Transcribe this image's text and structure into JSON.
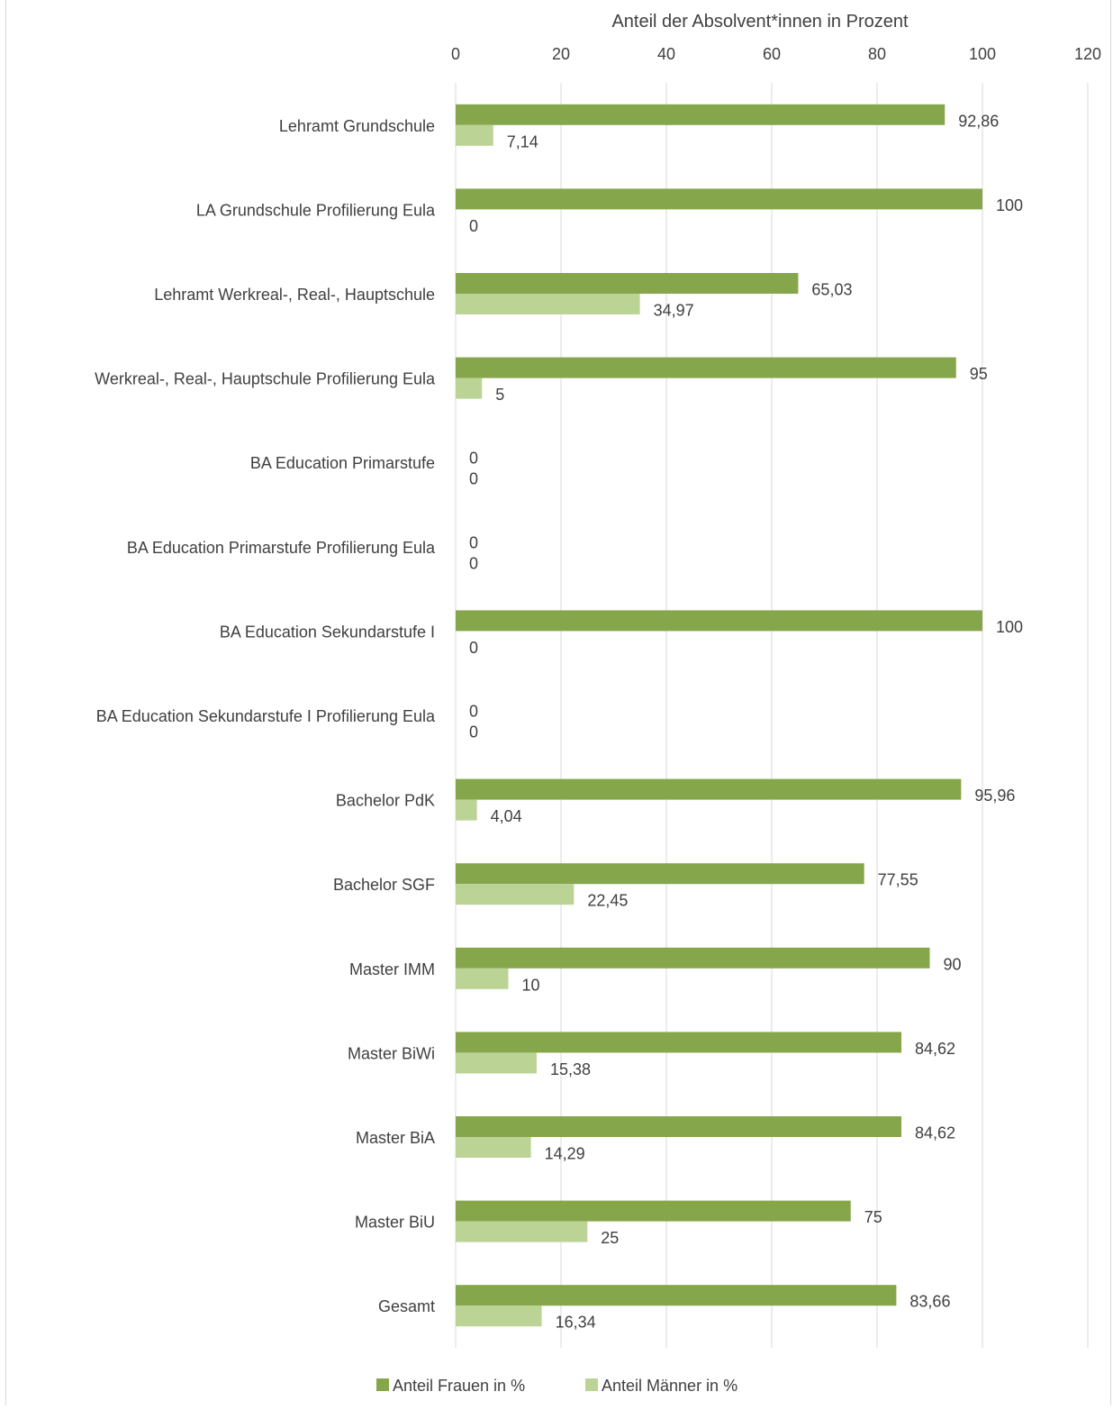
{
  "chart_data": {
    "type": "bar",
    "orientation": "horizontal",
    "title": "",
    "xlabel": "Anteil der Absolvent*innen in Prozent",
    "ylabel": "",
    "xlim": [
      0,
      120
    ],
    "xticks": [
      0,
      20,
      40,
      60,
      80,
      100,
      120
    ],
    "x_axis_position": "top",
    "grid": "vertical",
    "legend_position": "bottom",
    "categories": [
      "Lehramt Grundschule",
      "LA Grundschule Profilierung Eula",
      "Lehramt Werkreal-, Real-, Hauptschule",
      "Werkreal-, Real-, Hauptschule Profilierung Eula",
      "BA Education Primarstufe",
      "BA Education Primarstufe Profilierung Eula",
      "BA Education Sekundarstufe I",
      "BA Education Sekundarstufe I Profilierung Eula",
      "Bachelor PdK",
      "Bachelor SGF",
      "Master IMM",
      "Master BiWi",
      "Master BiA",
      "Master BiU",
      "Gesamt"
    ],
    "series": [
      {
        "name": "Anteil Frauen in %",
        "color": "#86a64c",
        "values": [
          92.86,
          100,
          65.03,
          95,
          0,
          0,
          100,
          0,
          95.96,
          77.55,
          90,
          84.62,
          84.62,
          75,
          83.66
        ],
        "labels": [
          "92,86",
          "100",
          "65,03",
          "95",
          "0",
          "0",
          "100",
          "0",
          "95,96",
          "77,55",
          "90",
          "84,62",
          "84,62",
          "75",
          "83,66"
        ]
      },
      {
        "name": "Anteil Männer in %",
        "color": "#bcd396",
        "values": [
          7.14,
          0,
          34.97,
          5,
          0,
          0,
          0,
          0,
          4.04,
          22.45,
          10,
          15.38,
          14.29,
          25,
          16.34
        ],
        "labels": [
          "7,14",
          "0",
          "34,97",
          "5",
          "0",
          "0",
          "0",
          "0",
          "4,04",
          "22,45",
          "10",
          "15,38",
          "14,29",
          "25",
          "16,34"
        ]
      }
    ]
  }
}
